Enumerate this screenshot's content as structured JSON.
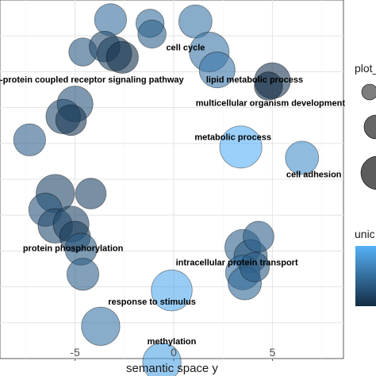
{
  "chart_data": {
    "type": "scatter",
    "xlabel": "semantic space y",
    "ylabel": "",
    "xlim": [
      -8.8,
      8.6
    ],
    "ylim": [
      -10,
      10
    ],
    "x_ticks": [
      -5,
      0,
      5
    ],
    "x_tick_labels": [
      "-5",
      "0",
      "5"
    ],
    "y_ticks": [
      -8,
      -6,
      -4,
      -2,
      0,
      2,
      4,
      6,
      8
    ],
    "grid": true,
    "bubble_opacity": 0.6,
    "color_scale": {
      "low": "#132B43",
      "high": "#56B1F7"
    },
    "legend": {
      "size_title": "plot_",
      "color_title": "unic",
      "placement": "right"
    },
    "points": [
      {
        "x": -3.2,
        "y": 8.9,
        "size": 0.7,
        "color": 0.5
      },
      {
        "x": -1.2,
        "y": 8.7,
        "size": 0.55,
        "color": 0.5
      },
      {
        "x": 1.1,
        "y": 8.8,
        "size": 0.75,
        "color": 0.55
      },
      {
        "x": -1.1,
        "y": 8.1,
        "size": 0.55,
        "color": 0.4
      },
      {
        "x": -4.6,
        "y": 7.1,
        "size": 0.55,
        "color": 0.35
      },
      {
        "x": -3.5,
        "y": 7.4,
        "size": 0.65,
        "color": 0.25
      },
      {
        "x": -3.0,
        "y": 7.0,
        "size": 0.8,
        "color": 0.15
      },
      {
        "x": -2.6,
        "y": 6.8,
        "size": 0.7,
        "color": 0.05
      },
      {
        "x": 1.8,
        "y": 7.1,
        "size": 1.0,
        "color": 0.55,
        "label": "cell cycle"
      },
      {
        "x": 2.2,
        "y": 6.1,
        "size": 0.85,
        "color": 0.55
      },
      {
        "x": 5.0,
        "y": 5.5,
        "size": 0.85,
        "color": 0.1
      },
      {
        "x": 4.8,
        "y": 5.2,
        "size": 0.55,
        "color": 0.0
      },
      {
        "x": -5.0,
        "y": 4.2,
        "size": 0.85,
        "color": 0.3
      },
      {
        "x": -5.6,
        "y": 3.5,
        "size": 0.8,
        "color": 0.25
      },
      {
        "x": -5.2,
        "y": 3.3,
        "size": 0.65,
        "color": 0.1
      },
      {
        "x": -7.3,
        "y": 2.2,
        "size": 0.7,
        "color": 0.4
      },
      {
        "x": 3.4,
        "y": 1.8,
        "size": 1.1,
        "color": 1.0
      },
      {
        "x": 6.5,
        "y": 1.2,
        "size": 0.75,
        "color": 0.75
      },
      {
        "x": -6.0,
        "y": -0.8,
        "size": 0.95,
        "color": 0.2
      },
      {
        "x": -6.5,
        "y": -1.7,
        "size": 0.75,
        "color": 0.3
      },
      {
        "x": -4.2,
        "y": -0.8,
        "size": 0.65,
        "color": 0.2
      },
      {
        "x": -6.0,
        "y": -2.6,
        "size": 0.8,
        "color": 0.25
      },
      {
        "x": -5.2,
        "y": -2.5,
        "size": 0.85,
        "color": 0.2
      },
      {
        "x": -5.0,
        "y": -3.2,
        "size": 0.65,
        "color": 0.15
      },
      {
        "x": -4.7,
        "y": -3.9,
        "size": 0.7,
        "color": 0.35
      },
      {
        "x": -4.6,
        "y": -5.3,
        "size": 0.7,
        "color": 0.4
      },
      {
        "x": 3.5,
        "y": -3.8,
        "size": 0.85,
        "color": 0.4
      },
      {
        "x": 3.9,
        "y": -4.3,
        "size": 0.75,
        "color": 0.35
      },
      {
        "x": 4.3,
        "y": -3.2,
        "size": 0.65,
        "color": 0.4
      },
      {
        "x": 3.5,
        "y": -5.2,
        "size": 0.8,
        "color": 0.5
      },
      {
        "x": 3.6,
        "y": -5.8,
        "size": 0.75,
        "color": 0.45
      },
      {
        "x": 4.1,
        "y": -4.9,
        "size": 0.6,
        "color": 0.35
      },
      {
        "x": -0.1,
        "y": -6.2,
        "size": 1.05,
        "color": 0.95
      },
      {
        "x": -3.7,
        "y": -8.2,
        "size": 0.95,
        "color": 0.55
      },
      {
        "x": -0.6,
        "y": -10.2,
        "size": 0.95,
        "color": 0.9
      }
    ],
    "annotations": [
      {
        "text": "cell cycle",
        "x": 0.6,
        "y": 7.2,
        "anchor": "middle"
      },
      {
        "text": "-protein coupled receptor signaling pathway",
        "x": -8.8,
        "y": 5.4,
        "anchor": "start"
      },
      {
        "text": "lipid metabolic process",
        "x": 4.1,
        "y": 5.4,
        "anchor": "middle"
      },
      {
        "text": "multicellular organism development",
        "x": 4.9,
        "y": 4.1,
        "anchor": "middle"
      },
      {
        "text": "metabolic process",
        "x": 3.0,
        "y": 2.2,
        "anchor": "middle"
      },
      {
        "text": "cell adhesion",
        "x": 5.7,
        "y": 0.1,
        "anchor": "start"
      },
      {
        "text": "protein phosphorylation",
        "x": -5.1,
        "y": -4.0,
        "anchor": "middle"
      },
      {
        "text": "intracellular protein transport",
        "x": 3.2,
        "y": -4.8,
        "anchor": "middle"
      },
      {
        "text": "response to stimulus",
        "x": -1.1,
        "y": -7.0,
        "anchor": "middle"
      },
      {
        "text": "methylation",
        "x": -0.1,
        "y": -9.2,
        "anchor": "middle"
      }
    ]
  }
}
